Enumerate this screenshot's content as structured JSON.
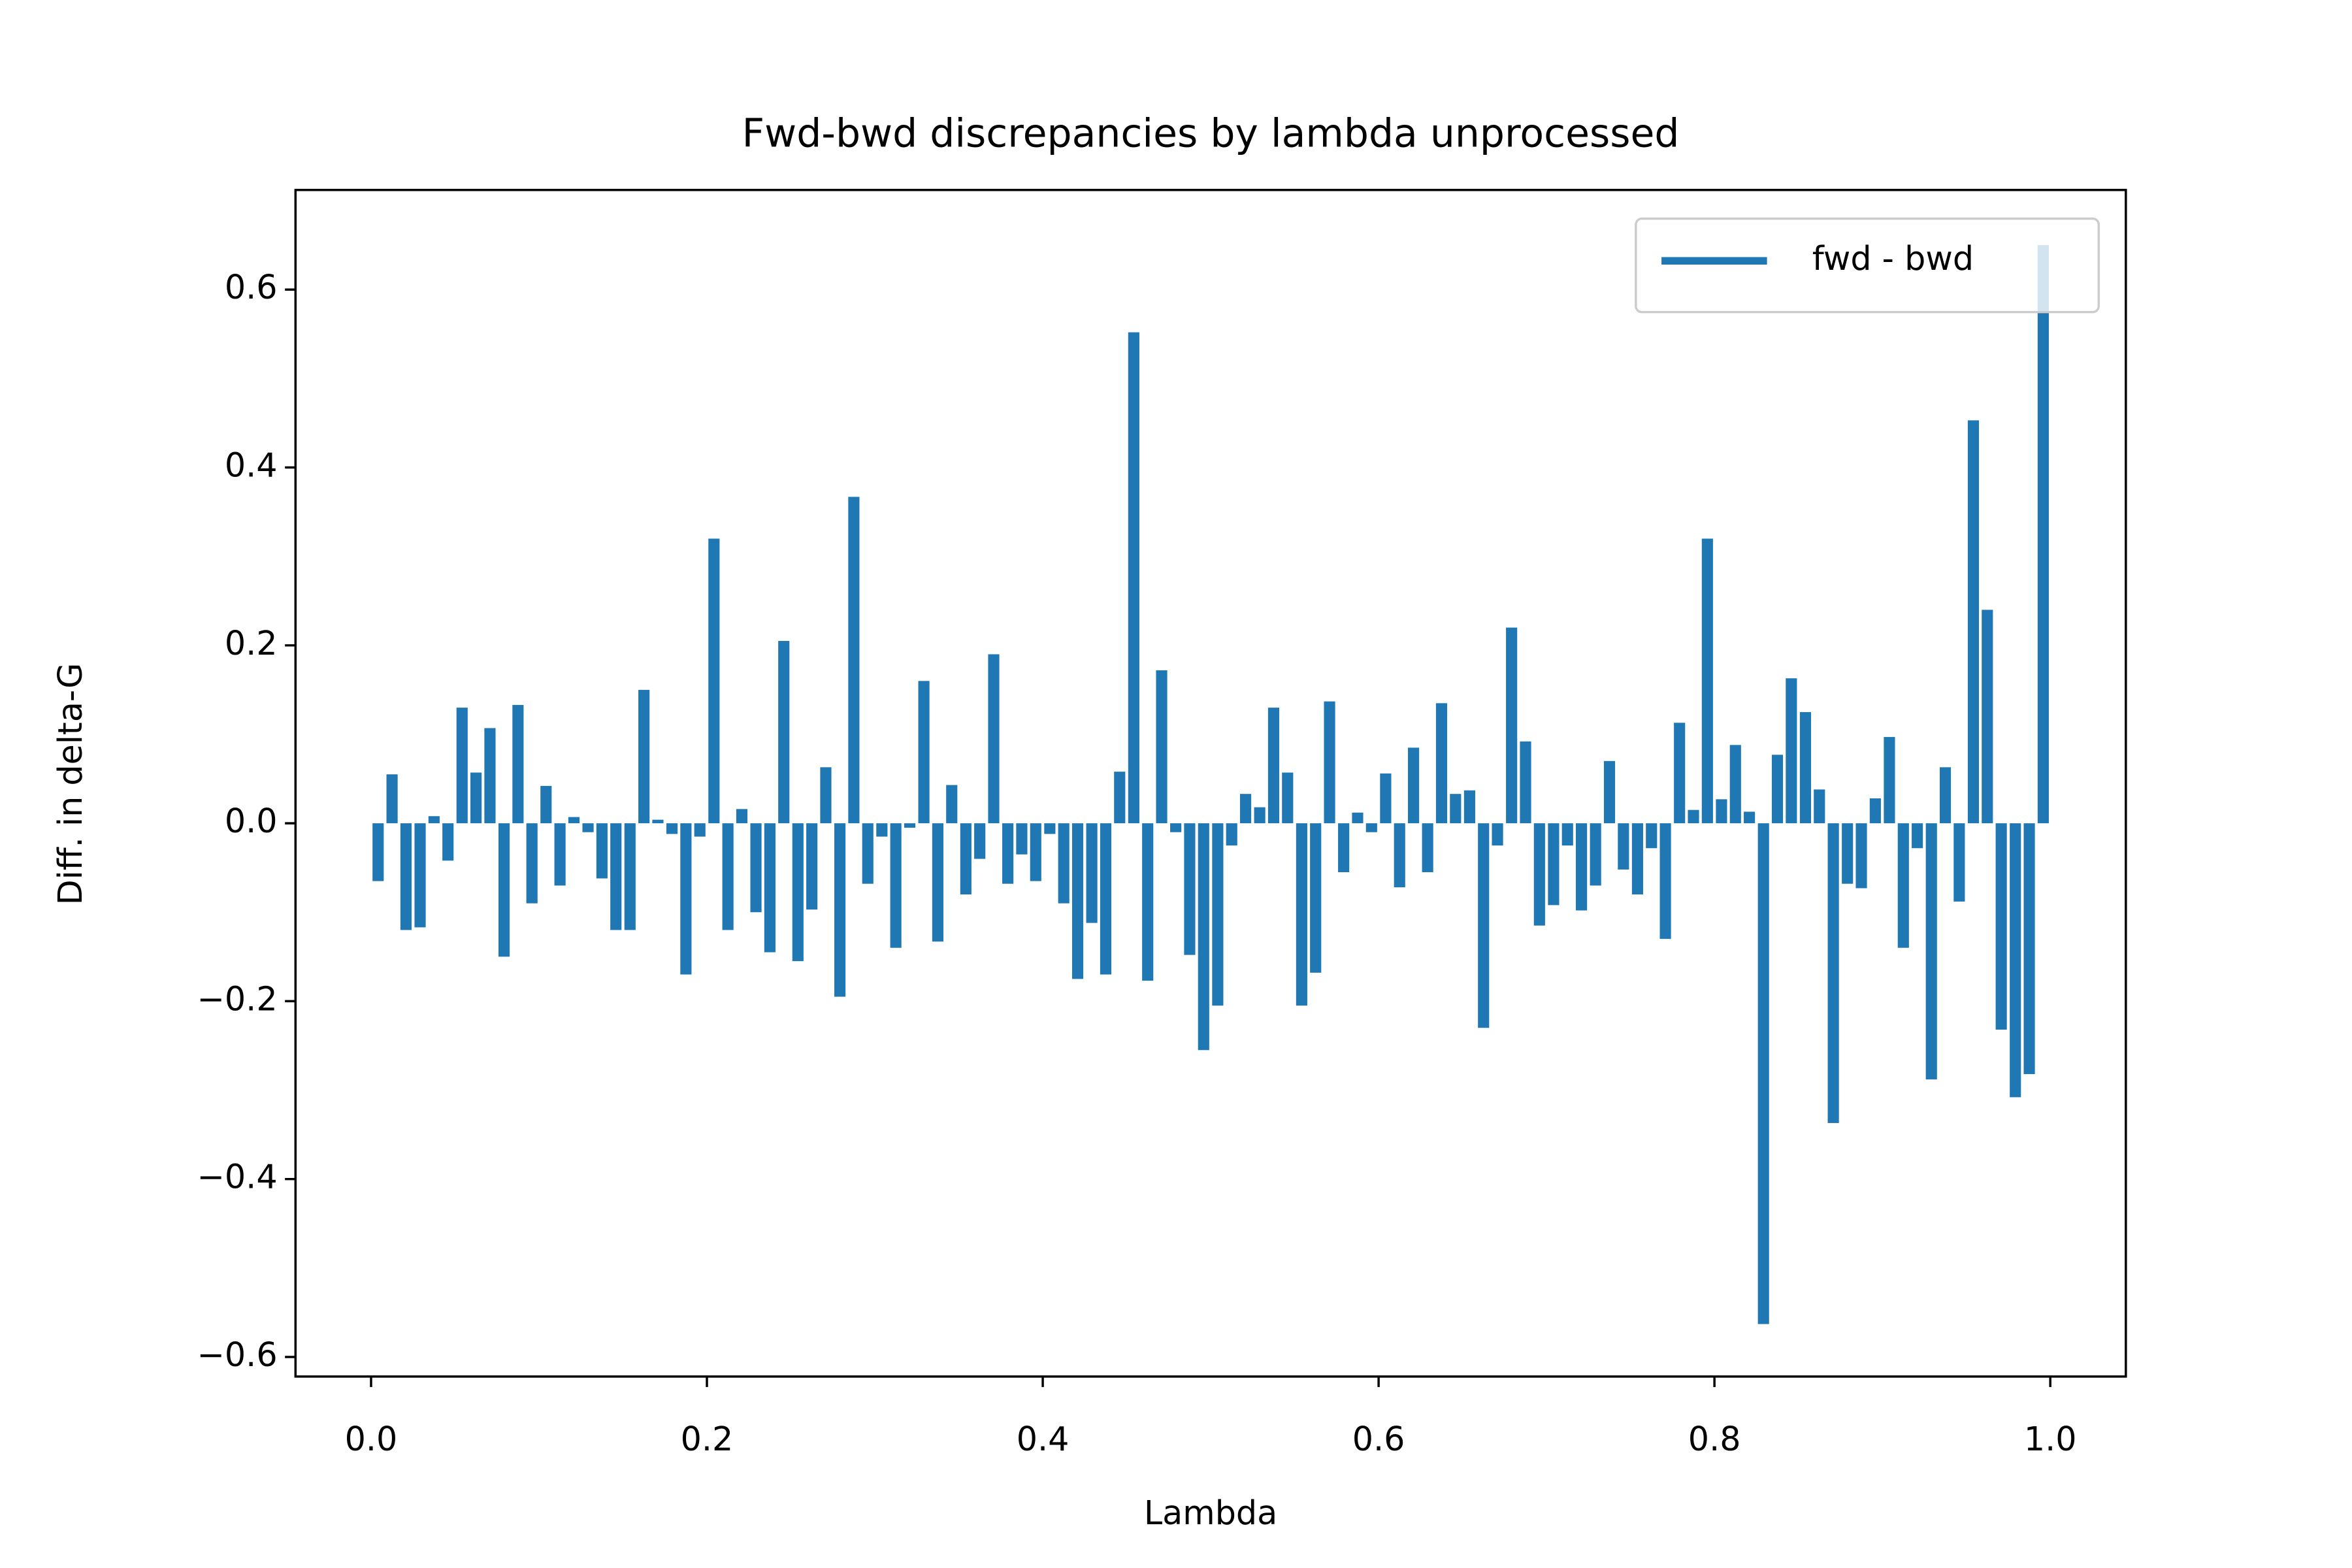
{
  "chart_data": {
    "type": "bar",
    "title": "Fwd-bwd discrepancies by lambda unprocessed",
    "x_label": "Lambda",
    "y_label": "Diff. in delta-G",
    "x": [
      0.0042,
      0.0125,
      0.0208,
      0.0292,
      0.0375,
      0.0458,
      0.0542,
      0.0625,
      0.0708,
      0.0792,
      0.0875,
      0.0958,
      0.1042,
      0.1125,
      0.1208,
      0.1292,
      0.1375,
      0.1458,
      0.1542,
      0.1625,
      0.1708,
      0.1792,
      0.1875,
      0.1958,
      0.2042,
      0.2125,
      0.2208,
      0.2292,
      0.2375,
      0.2458,
      0.2542,
      0.2625,
      0.2708,
      0.2792,
      0.2875,
      0.2958,
      0.3042,
      0.3125,
      0.3208,
      0.3292,
      0.3375,
      0.3458,
      0.3542,
      0.3625,
      0.3708,
      0.3792,
      0.3875,
      0.3958,
      0.4042,
      0.4125,
      0.4208,
      0.4292,
      0.4375,
      0.4458,
      0.4542,
      0.4625,
      0.4708,
      0.4792,
      0.4875,
      0.4958,
      0.5042,
      0.5125,
      0.5208,
      0.5292,
      0.5375,
      0.5458,
      0.5542,
      0.5625,
      0.5708,
      0.5792,
      0.5875,
      0.5958,
      0.6042,
      0.6125,
      0.6208,
      0.6292,
      0.6375,
      0.6458,
      0.6542,
      0.6625,
      0.6708,
      0.6792,
      0.6875,
      0.6958,
      0.7042,
      0.7125,
      0.7208,
      0.7292,
      0.7375,
      0.7458,
      0.7542,
      0.7625,
      0.7708,
      0.7792,
      0.7875,
      0.7958,
      0.8042,
      0.8125,
      0.8208,
      0.8292,
      0.8375,
      0.8458,
      0.8542,
      0.8625,
      0.8708,
      0.8792,
      0.8875,
      0.8958,
      0.9042,
      0.9125,
      0.9208,
      0.9292,
      0.9375,
      0.9458,
      0.9542,
      0.9625,
      0.9708,
      0.9792,
      0.9875,
      0.9958
    ],
    "series": [
      {
        "name": "fwd - bwd",
        "color": "#1f77b4",
        "values": [
          -0.065,
          0.055,
          -0.12,
          -0.117,
          0.008,
          -0.042,
          0.13,
          0.057,
          0.107,
          -0.15,
          0.133,
          -0.09,
          0.042,
          -0.07,
          0.007,
          -0.01,
          -0.062,
          -0.12,
          -0.12,
          0.15,
          0.004,
          -0.012,
          -0.17,
          -0.015,
          0.32,
          -0.12,
          0.016,
          -0.1,
          -0.145,
          0.205,
          -0.155,
          -0.097,
          0.063,
          -0.195,
          0.367,
          -0.068,
          -0.015,
          -0.14,
          -0.005,
          0.16,
          -0.133,
          0.043,
          -0.08,
          -0.04,
          0.19,
          -0.068,
          -0.035,
          -0.065,
          -0.012,
          -0.09,
          -0.175,
          -0.112,
          -0.17,
          0.058,
          0.552,
          -0.177,
          0.172,
          -0.01,
          -0.148,
          -0.255,
          -0.205,
          -0.025,
          0.033,
          0.018,
          0.13,
          0.057,
          -0.205,
          -0.168,
          0.137,
          -0.055,
          0.012,
          -0.01,
          0.056,
          -0.072,
          0.085,
          -0.055,
          0.135,
          0.033,
          0.037,
          -0.23,
          -0.025,
          0.22,
          0.092,
          -0.115,
          -0.092,
          -0.025,
          -0.098,
          -0.07,
          0.07,
          -0.052,
          -0.08,
          -0.028,
          -0.13,
          0.113,
          0.015,
          0.32,
          0.027,
          0.088,
          0.013,
          -0.563,
          0.077,
          0.163,
          0.125,
          0.038,
          -0.337,
          -0.068,
          -0.073,
          0.028,
          0.097,
          -0.14,
          -0.028,
          -0.288,
          0.063,
          -0.088,
          0.453,
          0.24,
          -0.232,
          -0.308,
          -0.282,
          0.65
        ]
      }
    ],
    "xlim": [
      -0.045,
      1.045
    ],
    "ylim": [
      -0.622,
      0.712
    ],
    "xticks": [
      {
        "value": 0,
        "label": "0.0"
      },
      {
        "value": 0.2,
        "label": "0.2"
      },
      {
        "value": 0.4,
        "label": "0.4"
      },
      {
        "value": 0.6,
        "label": "0.6"
      },
      {
        "value": 0.8,
        "label": "0.8"
      },
      {
        "value": 1,
        "label": "1.0"
      }
    ],
    "yticks": [
      {
        "value": -0.6,
        "label": "−0.6"
      },
      {
        "value": -0.4,
        "label": "−0.4"
      },
      {
        "value": -0.2,
        "label": "−0.2"
      },
      {
        "value": 0,
        "label": "0.0"
      },
      {
        "value": 0.2,
        "label": "0.2"
      },
      {
        "value": 0.4,
        "label": "0.4"
      },
      {
        "value": 0.6,
        "label": "0.6"
      }
    ],
    "grid": false,
    "legend": "upper right"
  }
}
